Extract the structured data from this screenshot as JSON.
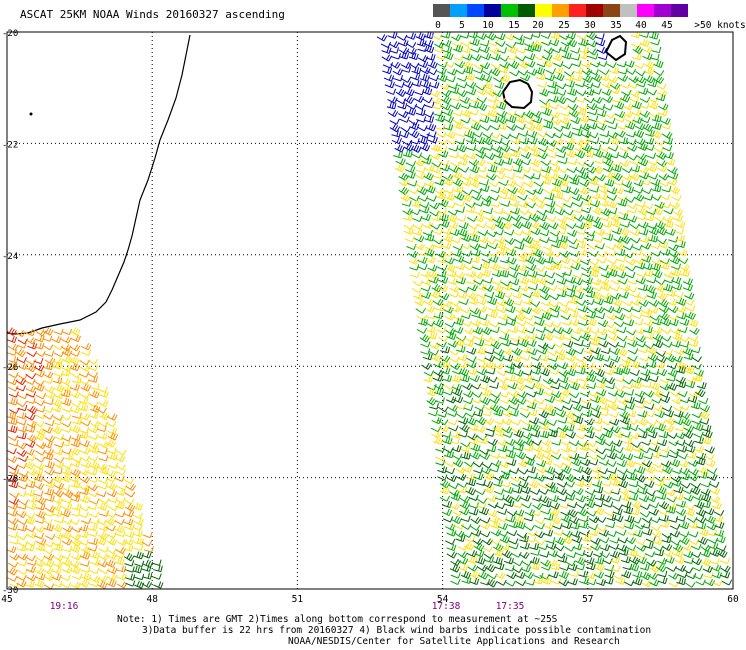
{
  "title": "ASCAT 25KM NOAA Winds 20160327 ascending",
  "legend": {
    "bins": [
      {
        "label": "0",
        "color": "#555555"
      },
      {
        "label": "5",
        "color": "#00a0ff"
      },
      {
        "label": "10",
        "color": "#0048ff"
      },
      {
        "label": "15",
        "color": "#0000a0"
      },
      {
        "label": "20",
        "color": "#00c000"
      },
      {
        "label": "25",
        "color": "#005a00"
      },
      {
        "label": "30",
        "color": "#ffff00"
      },
      {
        "label": "35",
        "color": "#ffa000"
      },
      {
        "label": "40",
        "color": "#ff2020"
      },
      {
        "label": "45",
        "color": "#a00000"
      },
      {
        "label": ">50 knots",
        "color": "#8b4513"
      }
    ],
    "extra_colors": [
      "#c0c0c0",
      "#ff00ff",
      "#a000d0",
      "#6000a0"
    ]
  },
  "axes": {
    "lat_labels": [
      "-20",
      "-22",
      "-24",
      "-26",
      "-28",
      "-30"
    ],
    "lon_labels": [
      "45",
      "48",
      "51",
      "54",
      "57",
      "60"
    ]
  },
  "pass_times": [
    "19:16",
    "17:38",
    "17:35"
  ],
  "notes": [
    "Note: 1) Times are GMT 2)Times along bottom correspond to measurement at ~25S",
    "3)Data buffer is 22 hrs from 20160327 4) Black wind barbs indicate possible contamination",
    "NOAA/NESDIS/Center for Satellite Applications and Research"
  ],
  "colors": {
    "grid": "#000000",
    "coast": "#000000",
    "time_label": "#800080",
    "wind_low": "#0000c0",
    "wind_green": "#00aa00",
    "wind_darkgreen": "#006400",
    "wind_yellow": "#ffe000",
    "wind_orange": "#ff8c00",
    "wind_red": "#e02000"
  }
}
